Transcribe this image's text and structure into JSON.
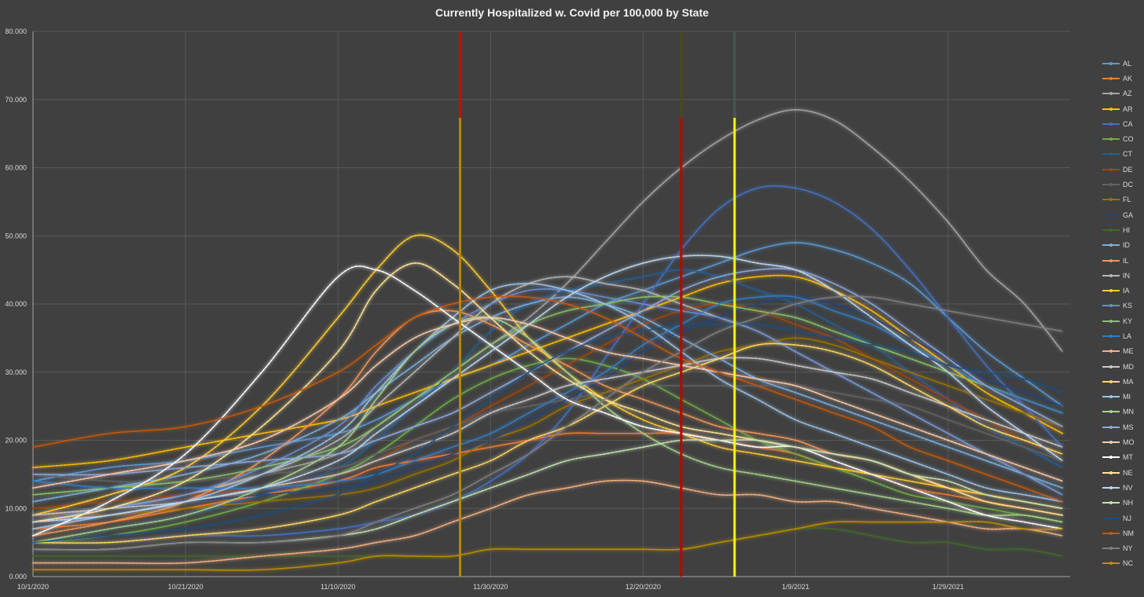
{
  "chart_data": {
    "type": "line",
    "title": "Currently Hospitalized w. Covid per 100,000 by State",
    "xlabel": "",
    "ylabel": "",
    "ylim": [
      0,
      80
    ],
    "xlim": [
      "2020-10-01",
      "2021-02-14"
    ],
    "y_ticks": [
      "0.000",
      "10.000",
      "20.000",
      "30.000",
      "40.000",
      "50.000",
      "60.000",
      "70.000",
      "80.000"
    ],
    "x_ticks": [
      "10/1/2020",
      "10/21/2020",
      "11/10/2020",
      "11/30/2020",
      "12/20/2020",
      "1/9/2021",
      "1/29/2021"
    ],
    "x_tick_dates": [
      "2020-10-01",
      "2020-10-21",
      "2020-11-10",
      "2020-11-30",
      "2020-12-20",
      "2021-01-09",
      "2021-01-29"
    ],
    "grid": true,
    "legend_position": "right",
    "reference_lines": [
      {
        "date": "2020-11-26",
        "color": "#b8860b",
        "top_color": "#c00000"
      },
      {
        "date": "2020-12-25",
        "color": "#c00000",
        "top_color": "#375623"
      },
      {
        "date": "2021-01-01",
        "color": "#ffff00",
        "top_color": "#1f3864"
      }
    ],
    "x": [
      "2020-10-01",
      "2020-10-11",
      "2020-10-21",
      "2020-10-31",
      "2020-11-10",
      "2020-11-15",
      "2020-11-20",
      "2020-11-25",
      "2020-11-30",
      "2020-12-05",
      "2020-12-10",
      "2020-12-15",
      "2020-12-20",
      "2020-12-25",
      "2020-12-30",
      "2021-01-04",
      "2021-01-09",
      "2021-01-14",
      "2021-01-19",
      "2021-01-24",
      "2021-01-29",
      "2021-02-03",
      "2021-02-08",
      "2021-02-13"
    ],
    "series": [
      {
        "name": "AL",
        "color": "#5b9bd5",
        "values": [
          14,
          16,
          17,
          19,
          21,
          23,
          26,
          29,
          31,
          34,
          37,
          40,
          42,
          44,
          46,
          48,
          49,
          48,
          46,
          43,
          38,
          33,
          29,
          25
        ]
      },
      {
        "name": "AK",
        "color": "#ed7d31",
        "values": [
          7,
          8,
          10,
          12,
          14,
          16,
          17,
          18,
          19,
          20,
          21,
          21,
          21,
          21,
          20,
          19,
          18,
          16,
          15,
          13,
          12,
          11,
          10,
          9
        ]
      },
      {
        "name": "AZ",
        "color": "#a5a5a5",
        "values": [
          9,
          10,
          12,
          15,
          18,
          22,
          26,
          30,
          34,
          38,
          43,
          49,
          55,
          60,
          64,
          67,
          68.5,
          67,
          63,
          58,
          52,
          45,
          40,
          33
        ]
      },
      {
        "name": "AR",
        "color": "#ffc000",
        "values": [
          16,
          17,
          19,
          21,
          23,
          25,
          27,
          29,
          31,
          33,
          35,
          37,
          39,
          41,
          43,
          44,
          44,
          42,
          39,
          35,
          31,
          27,
          24,
          21
        ]
      },
      {
        "name": "CA",
        "color": "#4472c4",
        "values": [
          5,
          5,
          6,
          6,
          7,
          8,
          9,
          11,
          14,
          18,
          24,
          32,
          40,
          48,
          54,
          57,
          57,
          55,
          51,
          45,
          38,
          31,
          25,
          19
        ]
      },
      {
        "name": "CO",
        "color": "#70ad47",
        "values": [
          5,
          6,
          8,
          11,
          15,
          18,
          22,
          26,
          29,
          31,
          32,
          31,
          29,
          26,
          23,
          20,
          18,
          16,
          14,
          12,
          11,
          10,
          9,
          8
        ]
      },
      {
        "name": "CT",
        "color": "#255e91",
        "values": [
          5,
          7,
          9,
          12,
          16,
          20,
          25,
          30,
          36,
          40,
          42,
          43,
          44,
          45,
          44,
          42,
          40,
          37,
          34,
          30,
          26,
          22,
          19,
          16
        ]
      },
      {
        "name": "DE",
        "color": "#9e480e",
        "values": [
          10,
          11,
          12,
          13,
          15,
          17,
          20,
          22,
          25,
          28,
          31,
          34,
          37,
          39,
          40,
          39,
          37,
          35,
          32,
          29,
          26,
          23,
          20,
          18
        ]
      },
      {
        "name": "DC",
        "color": "#636363",
        "values": [
          15,
          14,
          14,
          15,
          16,
          18,
          20,
          22,
          24,
          25,
          26,
          27,
          28,
          28,
          28,
          28,
          28,
          27,
          26,
          25,
          23,
          21,
          19,
          17
        ]
      },
      {
        "name": "FL",
        "color": "#997300",
        "values": [
          9,
          9,
          10,
          11,
          12,
          13,
          15,
          17,
          20,
          22,
          25,
          27,
          29,
          31,
          33,
          34,
          35,
          34,
          32,
          30,
          28,
          26,
          24,
          22
        ]
      },
      {
        "name": "GA",
        "color": "#264478",
        "values": [
          9,
          10,
          11,
          12,
          13,
          14,
          16,
          18,
          20,
          23,
          26,
          29,
          33,
          36,
          38,
          40,
          41,
          40,
          38,
          35,
          32,
          29,
          27,
          25
        ]
      },
      {
        "name": "HI",
        "color": "#43682b",
        "values": [
          3,
          3,
          3,
          3,
          3,
          3,
          3,
          3,
          4,
          4,
          4,
          4,
          4,
          4,
          5,
          6,
          7,
          7,
          6,
          5,
          5,
          4,
          4,
          3
        ]
      },
      {
        "name": "ID",
        "color": "#7cafdd",
        "values": [
          11,
          13,
          15,
          18,
          23,
          27,
          31,
          35,
          38,
          40,
          41,
          40,
          38,
          35,
          32,
          29,
          27,
          25,
          23,
          21,
          19,
          17,
          15,
          13
        ]
      },
      {
        "name": "IL",
        "color": "#f1975a",
        "values": [
          6,
          8,
          11,
          17,
          26,
          33,
          38,
          39,
          37,
          34,
          31,
          28,
          26,
          24,
          22,
          21,
          20,
          18,
          17,
          15,
          13,
          12,
          11,
          10
        ]
      },
      {
        "name": "IN",
        "color": "#b7b7b7",
        "values": [
          8,
          10,
          12,
          15,
          20,
          25,
          30,
          35,
          40,
          43,
          44,
          43,
          42,
          40,
          38,
          36,
          33,
          30,
          27,
          24,
          21,
          18,
          15,
          12
        ]
      },
      {
        "name": "IA",
        "color": "#ffcd33",
        "values": [
          9,
          12,
          16,
          25,
          38,
          45,
          50,
          48,
          42,
          35,
          30,
          26,
          23,
          21,
          19,
          18,
          17,
          16,
          15,
          14,
          13,
          12,
          11,
          10
        ]
      },
      {
        "name": "KS",
        "color": "#698ed0",
        "values": [
          8,
          10,
          12,
          16,
          22,
          28,
          33,
          37,
          40,
          42,
          42,
          41,
          40,
          39,
          38,
          36,
          33,
          30,
          27,
          24,
          21,
          18,
          15,
          12
        ]
      },
      {
        "name": "KY",
        "color": "#8cc168",
        "values": [
          12,
          13,
          14,
          16,
          19,
          22,
          26,
          30,
          34,
          37,
          39,
          40,
          41,
          41,
          40,
          39,
          38,
          36,
          34,
          32,
          30,
          28,
          26,
          24
        ]
      },
      {
        "name": "LA",
        "color": "#327dc2",
        "values": [
          14,
          13,
          13,
          13,
          14,
          15,
          17,
          19,
          21,
          24,
          27,
          30,
          34,
          37,
          40,
          41,
          41,
          39,
          37,
          34,
          31,
          28,
          26,
          24
        ]
      },
      {
        "name": "ME",
        "color": "#f4b183",
        "values": [
          2,
          2,
          2,
          3,
          4,
          5,
          6,
          8,
          10,
          12,
          13,
          14,
          14,
          13,
          12,
          12,
          11,
          11,
          10,
          9,
          8,
          7,
          7,
          6
        ]
      },
      {
        "name": "MD",
        "color": "#c9c9c9",
        "values": [
          9,
          10,
          11,
          13,
          15,
          17,
          19,
          21,
          24,
          26,
          28,
          29,
          30,
          31,
          32,
          32,
          31,
          30,
          29,
          27,
          25,
          23,
          21,
          19
        ]
      },
      {
        "name": "MA",
        "color": "#ffd966",
        "values": [
          5,
          5,
          6,
          7,
          9,
          11,
          13,
          15,
          17,
          20,
          22,
          25,
          28,
          30,
          32,
          34,
          34,
          33,
          31,
          28,
          25,
          22,
          20,
          18
        ]
      },
      {
        "name": "MI",
        "color": "#9dc3e6",
        "values": [
          7,
          9,
          11,
          15,
          21,
          27,
          33,
          38,
          42,
          43,
          42,
          40,
          37,
          33,
          29,
          26,
          23,
          21,
          19,
          17,
          15,
          13,
          12,
          11
        ]
      },
      {
        "name": "MN",
        "color": "#a9d18e",
        "values": [
          5,
          7,
          9,
          13,
          19,
          26,
          33,
          37,
          38,
          35,
          30,
          25,
          21,
          18,
          16,
          15,
          14,
          13,
          12,
          11,
          10,
          9,
          9,
          8
        ]
      },
      {
        "name": "MS",
        "color": "#8faadc",
        "values": [
          15,
          15,
          16,
          17,
          18,
          20,
          22,
          24,
          27,
          30,
          33,
          36,
          39,
          42,
          44,
          45,
          45,
          43,
          40,
          36,
          32,
          28,
          25,
          22
        ]
      },
      {
        "name": "MO",
        "color": "#f8cbad",
        "values": [
          13,
          15,
          17,
          20,
          26,
          31,
          35,
          37,
          38,
          37,
          35,
          33,
          32,
          31,
          30,
          29,
          28,
          26,
          24,
          22,
          20,
          18,
          16,
          14
        ]
      },
      {
        "name": "MT",
        "color": "#ffffff",
        "values": [
          6,
          11,
          18,
          30,
          44,
          45,
          42,
          38,
          34,
          30,
          26,
          24,
          22,
          21,
          20,
          19,
          19,
          17,
          15,
          13,
          11,
          9,
          8,
          7
        ]
      },
      {
        "name": "NE",
        "color": "#ffe699",
        "values": [
          8,
          10,
          14,
          22,
          33,
          42,
          46,
          43,
          38,
          33,
          29,
          26,
          24,
          22,
          21,
          20,
          19,
          18,
          17,
          15,
          13,
          11,
          10,
          9
        ]
      },
      {
        "name": "NV",
        "color": "#bdd7ee",
        "values": [
          8,
          9,
          11,
          13,
          17,
          21,
          25,
          29,
          33,
          37,
          41,
          44,
          46,
          47,
          47,
          46,
          45,
          42,
          38,
          34,
          30,
          25,
          21,
          17
        ]
      },
      {
        "name": "NH",
        "color": "#c5e0b4",
        "values": [
          4,
          4,
          5,
          5,
          6,
          7,
          9,
          11,
          13,
          15,
          17,
          18,
          19,
          20,
          20,
          20,
          19,
          18,
          17,
          15,
          14,
          12,
          11,
          10
        ]
      },
      {
        "name": "NJ",
        "color": "#1f4e79",
        "values": [
          5,
          6,
          7,
          9,
          12,
          15,
          18,
          22,
          26,
          30,
          33,
          35,
          36,
          37,
          37,
          37,
          36,
          35,
          34,
          33,
          31,
          30,
          29,
          27
        ]
      },
      {
        "name": "NM",
        "color": "#c55a11",
        "values": [
          19,
          21,
          22,
          25,
          30,
          34,
          38,
          40,
          41,
          41,
          40,
          38,
          35,
          32,
          30,
          28,
          26,
          24,
          22,
          19,
          17,
          15,
          13,
          11
        ]
      },
      {
        "name": "NY",
        "color": "#7f7f7f",
        "values": [
          4,
          4,
          5,
          5,
          6,
          8,
          10,
          12,
          15,
          18,
          22,
          26,
          30,
          33,
          36,
          38,
          40,
          41,
          41,
          40,
          39,
          38,
          37,
          36
        ]
      },
      {
        "name": "NC",
        "color": "#bf9000",
        "values": [
          1,
          1,
          1,
          1,
          2,
          3,
          3,
          3,
          4,
          4,
          4,
          4,
          4,
          4,
          5,
          6,
          7,
          8,
          8,
          8,
          8,
          8,
          7,
          7
        ]
      }
    ]
  }
}
